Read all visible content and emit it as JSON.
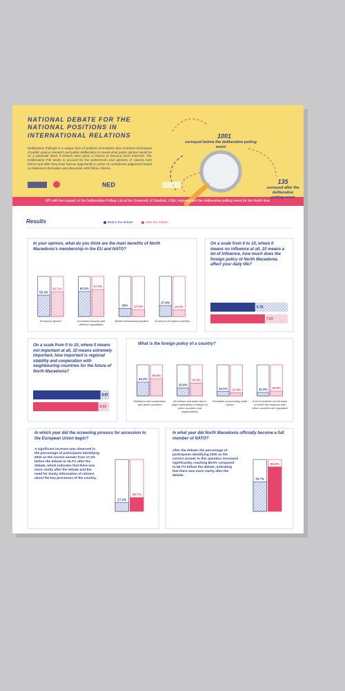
{
  "header": {
    "title": "NATIONAL DEBATE FOR THE NATIONAL POSITIONS IN INTERNATIONAL RELATIONS",
    "description": "Deliberative Polling® is a unique form of political consultation that combines techniques of public opinion research and public deliberation to reveal what public opinion would be on a particular issue if citizens were given a chance to become more informed. The Deliberative Poll seeks to account for the preferences and opinions of citizens both before and after they have had an opportunity to arrive at considerate judgments based on balanced information and discussion with fellow citizens.",
    "logo": "NED"
  },
  "stats": [
    {
      "value": 1001,
      "label": "surveyed before the deliberative polling event"
    },
    {
      "value": 135,
      "label": "surveyed after the deliberative polling event"
    }
  ],
  "banner": "EPI with the support of the Deliberative Polling Lab at the University of Stanford, USA, implemented the deliberative polling event for the fourth time.",
  "results": {
    "title": "Results",
    "legend": [
      {
        "name": "Before the debate",
        "color": "#2e3f8f"
      },
      {
        "name": "After the debate",
        "color": "#e6466b"
      }
    ]
  },
  "questions": [
    {
      "type": "columns",
      "question": "In your opinion, what do you think are the main benefits of North Macedonia's membership in the EU and NATO?",
      "categories": [
        "Economic growth",
        "Increased security and defence capabilities",
        "Better international position",
        "Access to European markets"
      ],
      "before": [
        53.3,
        62.2,
        20,
        27.4
      ],
      "before_labels": [
        "53.3%",
        "62.2%",
        "20%",
        "27.4%"
      ],
      "after": [
        61.7,
        67.2,
        17.2,
        16.4
      ],
      "after_labels": [
        "61.7%",
        "67.2%",
        "17.2%",
        "16.4%"
      ],
      "ylim": [
        0,
        100
      ]
    },
    {
      "type": "hbars",
      "question": "On a scale from 0 to 10, where 0 means no influence at all, 10 means a lot of influence, how much does the foreign policy of North Macedonia affect your daily life?",
      "before": [
        5.78
      ],
      "after": [
        7.04
      ],
      "xlim": [
        0,
        10
      ]
    },
    {
      "type": "hbars",
      "question": "On a scale from 0 to 10, where 0 means not important at all, 10 means extremely important, how important is regional stability and cooperation with neighbouring countries for the future of North Macedonia?",
      "before": [
        8.87
      ],
      "after": [
        8.59
      ],
      "xlim": [
        0,
        10
      ]
    },
    {
      "type": "columns",
      "question": "What is the foreign policy of a country?",
      "categories": [
        "Relations and cooperation with other countries",
        "All actions and steps that a state undertakes in relation to other countries and organizations",
        "Principles of promoting state values",
        "A set of policies on the basis of which the relations with other countries are regulated"
      ],
      "before": [
        44.4,
        25.9,
        14.1,
        11.3
      ],
      "before_labels": [
        "44.4%",
        "25.9%",
        "14.1%",
        "11.3%"
      ],
      "after": [
        55.6,
        41.5,
        10.4,
        15.6
      ],
      "after_labels": [
        "55.6%",
        "41.5%",
        "10.4%",
        "15.6%"
      ],
      "ylim": [
        0,
        100
      ]
    },
    {
      "type": "columns",
      "question": "In which year did the screening process for accession to the European Union begin?",
      "text": "A significant increase was observed in the percentage of participants identifying 2022 as the correct answer from 17.2% before the debate to 26.7% after the debate, which indicates that there was more clarity after the debate and the need for timely information of citizens about the key processes of the country.",
      "before": [
        17.2
      ],
      "before_labels": [
        "17.2%"
      ],
      "after": [
        26.7
      ],
      "after_labels": [
        "26.7%"
      ],
      "ylim": [
        0,
        100
      ]
    },
    {
      "type": "columns",
      "question": "In what year did North Macedonia officially become a full member of NATO?",
      "text": "After the debate, the percentage of participants identifying 2020 as the correct answer to this question increased significantly, reaching 85.9% compared to 56.7% before the debate, indicating that there was more clarity after the debate.",
      "before": [
        56.7
      ],
      "before_labels": [
        "56.7%"
      ],
      "after": [
        85.9
      ],
      "after_labels": [
        "85.9%"
      ],
      "ylim": [
        0,
        100
      ]
    }
  ]
}
